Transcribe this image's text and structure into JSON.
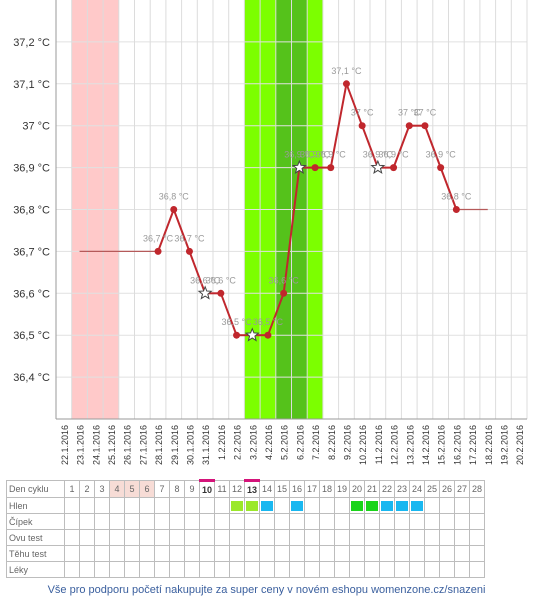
{
  "chart_data": {
    "type": "line",
    "x": [
      "22.1.2016",
      "23.1.2016",
      "24.1.2016",
      "25.1.2016",
      "26.1.2016",
      "27.1.2016",
      "28.1.2016",
      "29.1.2016",
      "30.1.2016",
      "31.1.2016",
      "1.2.2016",
      "2.2.2016",
      "3.2.2016",
      "4.2.2016",
      "5.2.2016",
      "6.2.2016",
      "7.2.2016",
      "8.2.2016",
      "9.2.2016",
      "10.2.2016",
      "11.2.2016",
      "12.2.2016",
      "13.2.2016",
      "14.2.2016",
      "15.2.2016",
      "16.2.2016",
      "17.2.2016",
      "18.2.2016",
      "19.2.2016",
      "20.2.2016"
    ],
    "series": [
      {
        "values": [
          null,
          36.7,
          36.7,
          36.7,
          36.7,
          36.7,
          36.7,
          36.8,
          36.7,
          36.6,
          36.6,
          36.5,
          36.5,
          36.5,
          36.6,
          36.9,
          36.9,
          36.9,
          37.1,
          37.0,
          36.9,
          36.9,
          37.0,
          37.0,
          36.9,
          36.8,
          36.8,
          36.8,
          null,
          null
        ],
        "labels": [
          null,
          null,
          null,
          null,
          null,
          null,
          "36,7 °C",
          "36,8 °C",
          "36,7 °C",
          "36,6 °C",
          "36,6 °C",
          "36,5 °C",
          null,
          "36,5 °C",
          "36,6 °C",
          "36,9 °C",
          "36,9 °C",
          "36,9 °C",
          "37,1 °C",
          "37 °C",
          "36,9 °C",
          "36,9 °C",
          "37 °C",
          "37 °C",
          "36,9 °C",
          "36,8 °C",
          null,
          null,
          null,
          null
        ],
        "markers": [
          null,
          null,
          null,
          null,
          null,
          null,
          "dot",
          "dot",
          "dot",
          "star",
          "dot",
          "dot",
          "star",
          "dot",
          "dot",
          "star",
          "dot",
          "dot",
          "dot",
          "dot",
          "star",
          "dot",
          "dot",
          "dot",
          "dot",
          "dot",
          null,
          null,
          null,
          null
        ],
        "color": "#c0272d"
      }
    ],
    "interpolated": [
      [
        1,
        6
      ],
      [
        25,
        27
      ]
    ],
    "ylim": [
      36.3,
      37.3
    ],
    "yticks": [
      36.4,
      36.5,
      36.6,
      36.7,
      36.8,
      36.9,
      37.0,
      37.1,
      37.2
    ],
    "ytick_labels": [
      "36,4 °C",
      "36,5 °C",
      "36,6 °C",
      "36,7 °C",
      "36,8 °C",
      "36,9 °C",
      "37 °C",
      "37,1 °C",
      "37,2 °C"
    ],
    "period_days": [
      "23.1.2016",
      "24.1.2016",
      "25.1.2016"
    ],
    "fertile_days": [
      "3.2.2016",
      "4.2.2016",
      "5.2.2016",
      "6.2.2016",
      "7.2.2016"
    ],
    "peak_fertile_days": [
      "5.2.2016",
      "6.2.2016"
    ],
    "grid": true,
    "colors": {
      "period": "#ffc9c9",
      "fertile": "#7cff00",
      "peak_fertile": "#55c21b",
      "line": "#c0272d"
    }
  },
  "table": {
    "rows": [
      "Den cyklu",
      "Hlen",
      "Čípek",
      "Ovu test",
      "Těhu test",
      "Léky"
    ],
    "days": [
      "1",
      "2",
      "3",
      "4",
      "5",
      "6",
      "7",
      "8",
      "9",
      "10",
      "11",
      "12",
      "13",
      "14",
      "15",
      "16",
      "17",
      "18",
      "19",
      "20",
      "21",
      "22",
      "23",
      "24",
      "25",
      "26",
      "27",
      "28"
    ],
    "period_day_indices": [
      3,
      4,
      5
    ],
    "underlined_day_indices": [
      9,
      12
    ],
    "mucus": [
      {
        "day_index": 11,
        "color": "#9be82a"
      },
      {
        "day_index": 12,
        "color": "#9be82a"
      },
      {
        "day_index": 13,
        "color": "#18b7f0"
      },
      {
        "day_index": 15,
        "color": "#18b7f0"
      },
      {
        "day_index": 19,
        "color": "#19d419"
      },
      {
        "day_index": 20,
        "color": "#19d419"
      },
      {
        "day_index": 21,
        "color": "#18b7f0"
      },
      {
        "day_index": 22,
        "color": "#18b7f0"
      },
      {
        "day_index": 23,
        "color": "#18b7f0"
      }
    ]
  },
  "footer": "Vše pro podporu početí nakupujte za super ceny v novém eshopu womenzone.cz/snazeni"
}
